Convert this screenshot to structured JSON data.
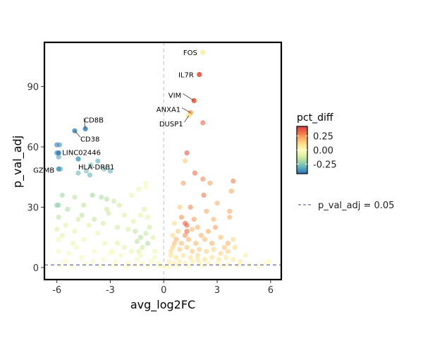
{
  "chart_data": {
    "type": "scatter",
    "title": "",
    "xlabel": "avg_log2FC",
    "ylabel": "p_val_adj",
    "xlim": [
      -6.7,
      6.6
    ],
    "ylim": [
      -6,
      112
    ],
    "xticks": [
      "-6",
      "-3",
      "0",
      "3",
      "6"
    ],
    "xtick_values": [
      -6,
      -3,
      0,
      3,
      6
    ],
    "yticks": [
      "0",
      "30",
      "60",
      "90"
    ],
    "ytick_values": [
      0,
      30,
      60,
      90
    ],
    "threshold": {
      "y": 1.3,
      "label": "p_val_adj = 0.05",
      "color": "#6a6aaa"
    },
    "vline_x": 0,
    "colorbar": {
      "title": "pct_diff",
      "min": -0.42,
      "max": 0.42,
      "ticks": [
        "0.25",
        "0.00",
        "-0.25"
      ],
      "tick_values": [
        0.25,
        0.0,
        -0.25
      ],
      "colors": [
        "#2b6fb2",
        "#5aaec0",
        "#9ed6a4",
        "#ddf0a0",
        "#fdfdbe",
        "#fee08b",
        "#fdae61",
        "#f46d43",
        "#d53e4f"
      ]
    },
    "labeled_genes": [
      {
        "gene": "FOS",
        "x": 2.2,
        "y": 107,
        "pct_diff": 0.05
      },
      {
        "gene": "IL7R",
        "x": 2.0,
        "y": 96,
        "pct_diff": 0.36
      },
      {
        "gene": "VIM",
        "x": 1.7,
        "y": 83,
        "pct_diff": 0.33
      },
      {
        "gene": "ANXA1",
        "x": 1.5,
        "y": 77,
        "pct_diff": 0.22
      },
      {
        "gene": "DUSP1",
        "x": 1.4,
        "y": 75.5,
        "pct_diff": 0.08
      },
      {
        "gene": "CD8B",
        "x": -4.4,
        "y": 69,
        "pct_diff": -0.39
      },
      {
        "gene": "CD38",
        "x": -5.0,
        "y": 68,
        "pct_diff": -0.37
      },
      {
        "gene": "LINC02446",
        "x": -5.9,
        "y": 57,
        "pct_diff": -0.4
      },
      {
        "gene": "GZMB",
        "x": -5.9,
        "y": 49,
        "pct_diff": -0.35
      },
      {
        "gene": "HLA-DRB1",
        "x": -4.8,
        "y": 54,
        "pct_diff": -0.34
      }
    ],
    "points": [
      [
        -6.0,
        61,
        -0.4
      ],
      [
        -5.85,
        61,
        -0.36
      ],
      [
        -6.0,
        57,
        -0.38
      ],
      [
        -5.9,
        55,
        -0.33
      ],
      [
        -5.8,
        49,
        -0.32
      ],
      [
        -4.8,
        47,
        -0.29
      ],
      [
        -4.35,
        48,
        -0.28
      ],
      [
        -4.15,
        46,
        -0.3
      ],
      [
        -3.7,
        53,
        -0.32
      ],
      [
        -3.35,
        49,
        -0.28
      ],
      [
        -3.0,
        48,
        -0.31
      ],
      [
        -4.1,
        51,
        -0.27
      ],
      [
        -5.7,
        36,
        -0.2
      ],
      [
        -6.0,
        31,
        -0.24
      ],
      [
        -5.9,
        31,
        -0.22
      ],
      [
        -5.4,
        29,
        -0.18
      ],
      [
        -5.0,
        35,
        -0.16
      ],
      [
        -4.5,
        31,
        -0.15
      ],
      [
        -4.0,
        36,
        -0.2
      ],
      [
        -3.5,
        35,
        -0.18
      ],
      [
        -3.2,
        34,
        -0.17
      ],
      [
        -2.8,
        33,
        -0.14
      ],
      [
        -3.2,
        29,
        -0.13
      ],
      [
        -2.5,
        31,
        -0.12
      ],
      [
        -1.8,
        36,
        -0.06
      ],
      [
        -1.4,
        39,
        -0.05
      ],
      [
        -1.0,
        42,
        -0.03
      ],
      [
        -1.0,
        40,
        -0.02
      ],
      [
        -4.6,
        26,
        -0.16
      ],
      [
        -3.9,
        24,
        -0.14
      ],
      [
        -3.1,
        27,
        -0.13
      ],
      [
        -2.6,
        20,
        -0.12
      ],
      [
        -2.0,
        19,
        -0.11
      ],
      [
        -1.7,
        23,
        -0.09
      ],
      [
        -1.1,
        29,
        -0.1
      ],
      [
        -0.9,
        25,
        -0.07
      ],
      [
        -5.9,
        25,
        -0.16
      ],
      [
        -6.0,
        19,
        -0.1
      ],
      [
        -5.7,
        16,
        -0.08
      ],
      [
        -5.5,
        21,
        -0.09
      ],
      [
        -5.0,
        18,
        -0.07
      ],
      [
        -4.5,
        14,
        -0.06
      ],
      [
        -4.2,
        21,
        -0.08
      ],
      [
        -3.7,
        17,
        -0.06
      ],
      [
        -3.3,
        12,
        -0.05
      ],
      [
        -1.6,
        18,
        -0.15
      ],
      [
        -1.3,
        15,
        -0.17
      ],
      [
        -1.5,
        13,
        -0.16
      ],
      [
        -1.0,
        17,
        -0.14
      ],
      [
        -0.9,
        12,
        -0.18
      ],
      [
        -0.8,
        20,
        -0.12
      ],
      [
        -1.2,
        10,
        -0.13
      ],
      [
        -0.6,
        15,
        -0.1
      ],
      [
        -5.9,
        14,
        -0.04
      ],
      [
        -5.9,
        8,
        -0.03
      ],
      [
        -5.3,
        7,
        -0.02
      ],
      [
        -4.9,
        10,
        -0.03
      ],
      [
        -4.6,
        5,
        -0.02
      ],
      [
        -3.9,
        8,
        -0.02
      ],
      [
        -3.4,
        4,
        -0.02
      ],
      [
        -3.0,
        7,
        -0.01
      ],
      [
        -2.7,
        3,
        -0.01
      ],
      [
        -2.4,
        6,
        -0.02
      ],
      [
        -2.0,
        2,
        -0.01
      ],
      [
        -1.5,
        4,
        -0.03
      ],
      [
        -1.2,
        2,
        -0.02
      ],
      [
        -1.8,
        8,
        -0.06
      ],
      [
        -2.2,
        10,
        -0.08
      ],
      [
        -2.6,
        12,
        -0.09
      ],
      [
        -1.4,
        8,
        -0.1
      ],
      [
        -0.5,
        5,
        -0.04
      ],
      [
        -0.3,
        2,
        -0.02
      ],
      [
        -0.2,
        1,
        -0.01
      ],
      [
        -0.7,
        3,
        0.01
      ],
      [
        -0.5,
        8,
        -0.06
      ],
      [
        -5.8,
        1,
        0.0
      ],
      [
        -5.2,
        0.5,
        0.0
      ],
      [
        -4.4,
        1.5,
        0.0
      ],
      [
        -3.6,
        0.6,
        0.01
      ],
      [
        -2.8,
        1,
        0.0
      ],
      [
        -2.1,
        0.4,
        0.0
      ],
      [
        -1.6,
        1.2,
        0.0
      ],
      [
        -0.9,
        0.5,
        0.01
      ],
      [
        -4.0,
        3,
        -0.01
      ],
      [
        -5.5,
        3,
        -0.01
      ],
      [
        -0.3,
        0.8,
        0.0
      ],
      [
        0.1,
        0.4,
        0.0
      ],
      [
        0.3,
        1,
        0.01
      ],
      [
        -1.3,
        6,
        -0.04
      ],
      [
        -2.9,
        8,
        -0.04
      ],
      [
        -5.1,
        12,
        -0.06
      ],
      [
        -4.8,
        24,
        -0.12
      ],
      [
        -3.4,
        22,
        -0.12
      ],
      [
        -2.2,
        26,
        -0.09
      ],
      [
        -1.3,
        26,
        -0.07
      ],
      [
        2.2,
        107,
        0.05
      ],
      [
        2.0,
        96,
        0.36
      ],
      [
        1.7,
        83,
        0.33
      ],
      [
        1.5,
        77,
        0.22
      ],
      [
        1.4,
        75.5,
        0.08
      ],
      [
        2.2,
        72,
        0.34
      ],
      [
        1.3,
        57,
        0.37
      ],
      [
        1.2,
        53,
        0.15
      ],
      [
        1.1,
        42,
        0.23
      ],
      [
        1.75,
        47,
        0.32
      ],
      [
        2.2,
        44,
        0.27
      ],
      [
        2.6,
        42,
        0.23
      ],
      [
        3.9,
        43,
        0.29
      ],
      [
        3.8,
        38,
        0.22
      ],
      [
        2.25,
        36,
        0.3
      ],
      [
        3.7,
        28,
        0.22
      ],
      [
        3.7,
        25,
        0.2
      ],
      [
        1.2,
        22,
        0.35
      ],
      [
        1.3,
        21,
        0.33
      ],
      [
        1.3,
        18,
        0.33
      ],
      [
        2.9,
        20,
        0.23
      ],
      [
        1.2,
        16,
        0.26
      ],
      [
        1.9,
        20,
        0.2
      ],
      [
        1.6,
        19,
        0.18
      ],
      [
        0.7,
        14,
        0.2
      ],
      [
        1.0,
        12,
        0.18
      ],
      [
        1.4,
        14,
        0.2
      ],
      [
        1.8,
        12,
        0.19
      ],
      [
        2.3,
        14,
        0.18
      ],
      [
        2.7,
        12,
        0.2
      ],
      [
        3.2,
        15,
        0.18
      ],
      [
        3.6,
        12,
        0.2
      ],
      [
        3.9,
        14,
        0.12
      ],
      [
        0.5,
        10,
        0.14
      ],
      [
        0.9,
        9,
        0.15
      ],
      [
        1.3,
        10,
        0.16
      ],
      [
        1.6,
        8,
        0.16
      ],
      [
        2.0,
        9,
        0.15
      ],
      [
        2.4,
        8,
        0.14
      ],
      [
        2.8,
        9,
        0.13
      ],
      [
        3.2,
        7,
        0.13
      ],
      [
        3.6,
        8,
        0.14
      ],
      [
        4.0,
        10,
        0.12
      ],
      [
        0.4,
        6,
        0.1
      ],
      [
        0.7,
        5,
        0.11
      ],
      [
        1.1,
        6,
        0.1
      ],
      [
        1.5,
        5,
        0.1
      ],
      [
        1.9,
        6,
        0.12
      ],
      [
        2.3,
        4,
        0.1
      ],
      [
        2.7,
        5,
        0.1
      ],
      [
        3.1,
        4,
        0.09
      ],
      [
        3.5,
        5,
        0.08
      ],
      [
        3.9,
        4,
        0.07
      ],
      [
        4.3,
        3,
        0.06
      ],
      [
        4.6,
        6,
        0.05
      ],
      [
        0.3,
        3,
        0.05
      ],
      [
        0.6,
        2,
        0.05
      ],
      [
        0.9,
        3,
        0.06
      ],
      [
        1.2,
        2,
        0.05
      ],
      [
        1.6,
        3,
        0.05
      ],
      [
        2.0,
        2,
        0.04
      ],
      [
        2.5,
        2,
        0.04
      ],
      [
        3.0,
        2,
        0.03
      ],
      [
        3.6,
        1.5,
        0.03
      ],
      [
        4.2,
        1,
        0.02
      ],
      [
        4.8,
        1.2,
        0.02
      ],
      [
        5.3,
        0.8,
        0.01
      ],
      [
        5.7,
        2,
        0.01
      ],
      [
        5.9,
        3,
        0.01
      ],
      [
        0.2,
        0.6,
        0.0
      ],
      [
        0.8,
        0.8,
        0.01
      ],
      [
        1.4,
        0.5,
        0.01
      ],
      [
        2.2,
        0.8,
        0.01
      ],
      [
        3.3,
        0.6,
        0.01
      ],
      [
        0.6,
        12,
        0.18
      ],
      [
        0.8,
        18,
        0.15
      ],
      [
        0.5,
        16,
        0.12
      ],
      [
        2.1,
        16,
        0.21
      ],
      [
        2.5,
        18,
        0.22
      ],
      [
        3.4,
        10,
        0.16
      ],
      [
        1.0,
        25,
        0.25
      ],
      [
        1.5,
        30,
        0.28
      ],
      [
        2.4,
        28,
        0.22
      ],
      [
        3.0,
        32,
        0.2
      ],
      [
        0.9,
        30,
        0.15
      ],
      [
        1.7,
        24,
        0.24
      ],
      [
        2.8,
        24,
        0.19
      ],
      [
        0.6,
        22,
        0.1
      ],
      [
        1.9,
        4,
        0.08
      ],
      [
        0.4,
        8,
        0.12
      ]
    ]
  }
}
